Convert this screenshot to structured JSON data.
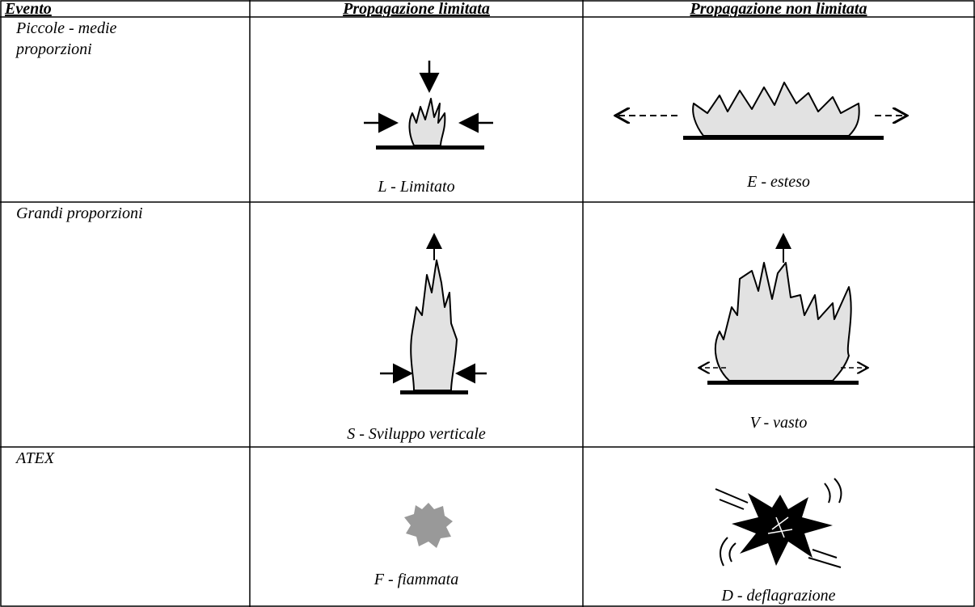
{
  "table": {
    "header": [
      "Evento",
      "Propagazione limitata",
      "Propagazione non limitata"
    ],
    "rows": [
      [
        "Piccole - medie proporzioni",
        "L - Limitato",
        "E - esteso"
      ],
      [
        "Grandi proporzioni",
        "S - Sviluppo verticale",
        "V - vasto"
      ],
      [
        "ATEX",
        "F - fiammata",
        "D - deflagrazione"
      ]
    ]
  }
}
